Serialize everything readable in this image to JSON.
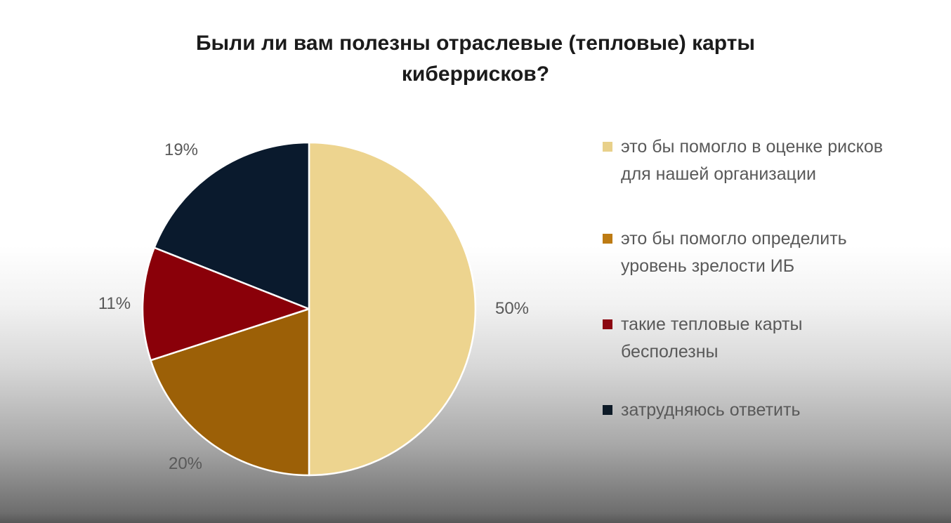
{
  "slide": {
    "title": "Были ли вам полезны отраслевые (тепловые) карты киберрисков?"
  },
  "chart_data": {
    "type": "pie",
    "title": "Были ли вам полезны отраслевые (тепловые) карты киберрисков?",
    "start_angle_deg": 0,
    "direction": "clockwise",
    "legend_position": "right",
    "data_labels": "outside",
    "slice_border_color": "#ffffff",
    "slices": [
      {
        "label": "это бы помогло в оценке рисков для нашей организации",
        "value": 50,
        "pct_label": "50%",
        "color": "#EDD48F",
        "legend_color": "#E8D08A"
      },
      {
        "label": "это бы помогло определить уровень зрелости ИБ",
        "value": 20,
        "pct_label": "20%",
        "color": "#9C6007",
        "legend_color": "#BD7B13"
      },
      {
        "label": "такие тепловые карты бесполезны",
        "value": 11,
        "pct_label": "11%",
        "color": "#8A0009",
        "legend_color": "#8C0711"
      },
      {
        "label": "затрудняюсь ответить",
        "value": 19,
        "pct_label": "19%",
        "color": "#0A1A2D",
        "legend_color": "#0E1B28"
      }
    ]
  },
  "colors": {
    "title_text": "#1b1b1b",
    "label_text": "#595959",
    "background_top": "#ffffff",
    "background_bottom": "#575757"
  }
}
